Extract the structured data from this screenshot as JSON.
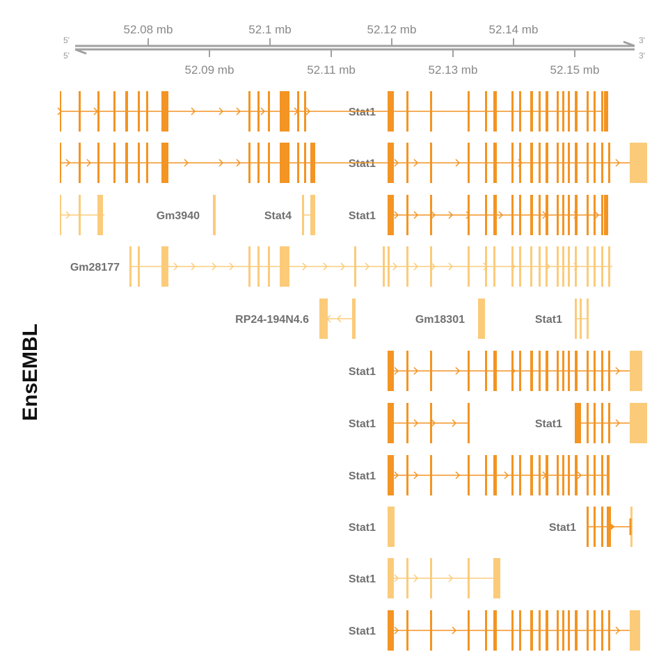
{
  "track_label": "EnsEMBL",
  "colors": {
    "axis": "#a0a0a0",
    "coding": "#f39423",
    "noncoding": "#fbcb7a",
    "label": "#707070"
  },
  "ruler": {
    "start_label_top": "5'",
    "end_label_top": "3'",
    "start_label_bottom": "5'",
    "end_label_bottom": "3'",
    "top_ticks": [
      "52.08 mb",
      "52.1 mb",
      "52.12 mb",
      "52.14 mb"
    ],
    "bottom_ticks": [
      "52.09 mb",
      "52.11 mb",
      "52.13 mb",
      "52.15 mb"
    ]
  },
  "genes": [
    {
      "name": "Stat1",
      "row": 1,
      "type": "coding",
      "strand": "+"
    },
    {
      "name": "Stat1",
      "row": 2,
      "type": "coding",
      "strand": "+"
    },
    {
      "name": "Gm3940",
      "row": 3,
      "type": "noncoding",
      "strand": "+"
    },
    {
      "name": "Stat4",
      "row": 3,
      "type": "noncoding",
      "strand": "+"
    },
    {
      "name": "Stat1",
      "row": 3,
      "type": "coding",
      "strand": "+"
    },
    {
      "name": "Gm28177",
      "row": 4,
      "type": "noncoding",
      "strand": "+"
    },
    {
      "name": "RP24-194N4.6",
      "row": 5,
      "type": "noncoding",
      "strand": "-"
    },
    {
      "name": "Gm18301",
      "row": 5,
      "type": "noncoding",
      "strand": "+"
    },
    {
      "name": "Stat1",
      "row": 5,
      "type": "noncoding",
      "strand": "+"
    },
    {
      "name": "Stat1",
      "row": 6,
      "type": "coding",
      "strand": "+"
    },
    {
      "name": "Stat1",
      "row": 7,
      "type": "coding",
      "strand": "+"
    },
    {
      "name": "Stat1",
      "row": 7,
      "type": "coding",
      "strand": "+"
    },
    {
      "name": "Stat1",
      "row": 8,
      "type": "coding",
      "strand": "+"
    },
    {
      "name": "Stat1",
      "row": 9,
      "type": "noncoding",
      "strand": "+"
    },
    {
      "name": "Stat1",
      "row": 9,
      "type": "coding",
      "strand": "+"
    },
    {
      "name": "Stat1",
      "row": 10,
      "type": "noncoding",
      "strand": "+"
    },
    {
      "name": "Stat1",
      "row": 11,
      "type": "coding",
      "strand": "+"
    }
  ]
}
